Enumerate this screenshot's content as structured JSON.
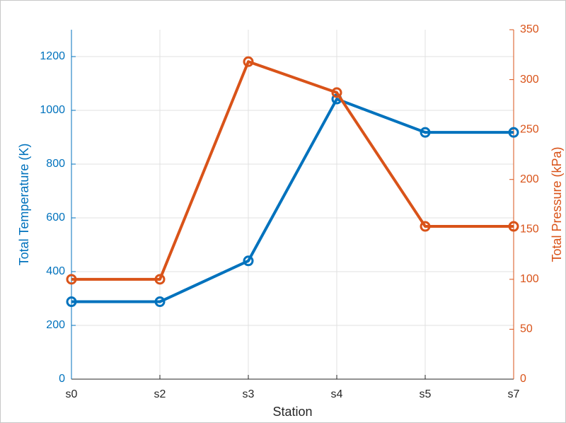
{
  "chart_data": {
    "type": "line",
    "xlabel": "Station",
    "ylabel": "Total Temperature (K)",
    "y2label": "Total Pressure (kPa)",
    "categories": [
      "s0",
      "s2",
      "s3",
      "s4",
      "s5",
      "s7"
    ],
    "series": [
      {
        "name": "Total Temperature",
        "color": "#0072BD",
        "values": [
          288,
          288,
          440,
          1042,
          918,
          918
        ]
      },
      {
        "name": "Total Pressure",
        "color": "#D95319",
        "axis": "y2",
        "values": [
          100,
          100,
          318,
          287,
          153,
          153
        ]
      }
    ],
    "ylim": [
      0,
      1300
    ],
    "yticks": [
      0,
      200,
      400,
      600,
      800,
      1000,
      1200
    ],
    "y2lim": [
      0,
      350
    ],
    "y2ticks": [
      0,
      50,
      100,
      150,
      200,
      250,
      300,
      350
    ],
    "grid": true
  }
}
